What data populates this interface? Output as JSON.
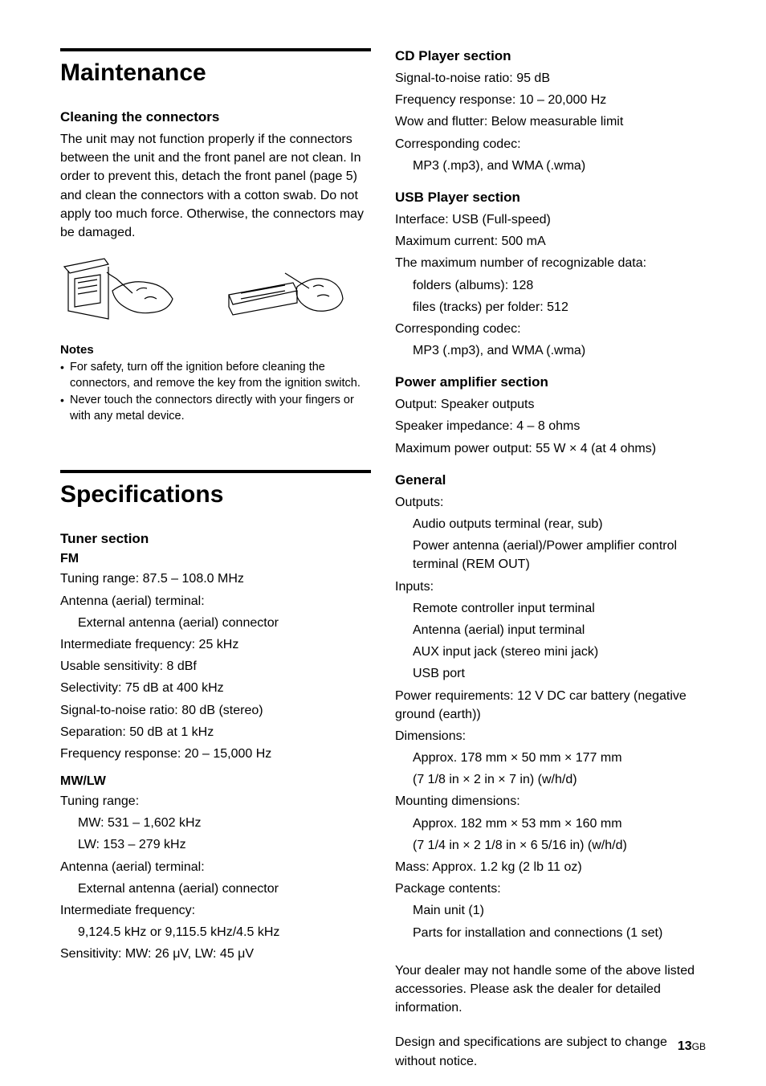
{
  "page": {
    "number": "13",
    "region": "GB"
  },
  "maintenance": {
    "title": "Maintenance",
    "cleaning_heading": "Cleaning the connectors",
    "cleaning_body": "The unit may not function properly if the connectors between the unit and the front panel are not clean. In order to prevent this, detach the front panel (page 5) and clean the connectors with a cotton swab. Do not apply too much force. Otherwise, the connectors may be damaged.",
    "notes_heading": "Notes",
    "notes": [
      "For safety, turn off the ignition before cleaning the connectors, and remove the key from the ignition switch.",
      "Never touch the connectors directly with your fingers or with any metal device."
    ]
  },
  "specs": {
    "title": "Specifications",
    "tuner_heading": "Tuner section",
    "fm_heading": "FM",
    "fm_lines": [
      "Tuning range: 87.5 – 108.0 MHz",
      "Antenna (aerial) terminal:",
      "External antenna (aerial) connector",
      "Intermediate frequency: 25 kHz",
      "Usable sensitivity: 8 dBf",
      "Selectivity: 75 dB at 400 kHz",
      "Signal-to-noise ratio: 80 dB (stereo)",
      "Separation: 50 dB at 1 kHz",
      "Frequency response: 20 – 15,000 Hz"
    ],
    "mwlw_heading": "MW/LW",
    "mwlw_lines": [
      "Tuning range:",
      "MW: 531 – 1,602 kHz",
      "LW: 153 – 279 kHz",
      "Antenna (aerial) terminal:",
      "External antenna (aerial) connector",
      "Intermediate frequency:",
      "9,124.5 kHz or 9,115.5 kHz/4.5 kHz",
      "Sensitivity: MW: 26 μV, LW: 45 μV"
    ],
    "cd_heading": "CD Player section",
    "cd_lines": [
      "Signal-to-noise ratio: 95 dB",
      "Frequency response: 10 – 20,000 Hz",
      "Wow and flutter: Below measurable limit",
      "Corresponding codec:",
      "MP3 (.mp3), and WMA (.wma)"
    ],
    "usb_heading": "USB Player section",
    "usb_lines": [
      "Interface: USB (Full-speed)",
      "Maximum current: 500 mA",
      "The maximum number of recognizable data:",
      "folders (albums): 128",
      "files (tracks) per folder: 512",
      "Corresponding codec:",
      "MP3 (.mp3), and WMA (.wma)"
    ],
    "amp_heading": "Power amplifier section",
    "amp_lines": [
      "Output: Speaker outputs",
      "Speaker impedance: 4 – 8 ohms",
      "Maximum power output: 55 W × 4 (at 4 ohms)"
    ],
    "general_heading": "General",
    "general_lines": [
      "Outputs:",
      "Audio outputs terminal (rear, sub)",
      "Power antenna (aerial)/Power amplifier control terminal (REM OUT)",
      "Inputs:",
      "Remote controller input terminal",
      "Antenna (aerial) input terminal",
      "AUX input jack (stereo mini jack)",
      "USB port",
      "Power requirements: 12 V DC car battery (negative ground (earth))",
      "Dimensions:",
      "Approx. 178 mm × 50 mm × 177 mm",
      "(7 1/8 in × 2 in × 7 in) (w/h/d)",
      "Mounting dimensions:",
      "Approx. 182 mm × 53 mm × 160 mm",
      "(7 1/4 in × 2 1/8 in × 6 5/16 in) (w/h/d)",
      "Mass: Approx. 1.2 kg (2 lb 11 oz)",
      "Package contents:",
      "Main unit (1)",
      "Parts for installation and connections (1 set)"
    ],
    "footer1": "Your dealer may not handle some of the above listed accessories. Please ask the dealer for detailed information.",
    "footer2": "Design and specifications are subject to change without notice."
  },
  "indent_map_fm": [
    false,
    false,
    true,
    false,
    false,
    false,
    false,
    false,
    false
  ],
  "indent_map_mwlw": [
    false,
    true,
    true,
    false,
    true,
    false,
    true,
    false
  ],
  "indent_map_cd": [
    false,
    false,
    false,
    false,
    true
  ],
  "indent_map_usb": [
    false,
    false,
    false,
    true,
    true,
    false,
    true
  ],
  "indent_map_amp": [
    false,
    false,
    false
  ],
  "indent_map_general": [
    false,
    true,
    true,
    false,
    true,
    true,
    true,
    true,
    false,
    false,
    true,
    true,
    false,
    true,
    true,
    false,
    false,
    true,
    true
  ]
}
